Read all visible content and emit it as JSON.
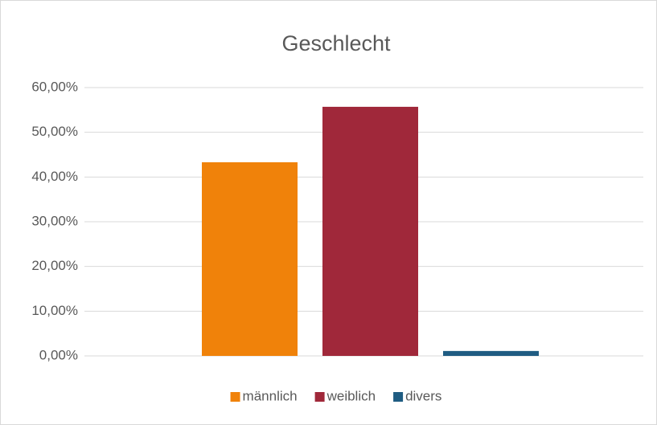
{
  "chart_data": {
    "type": "bar",
    "title": "Geschlecht",
    "categories": [
      null
    ],
    "series": [
      {
        "name": "männlich",
        "color": "#f0820a",
        "values": [
          43.3
        ]
      },
      {
        "name": "weiblich",
        "color": "#a0283a",
        "values": [
          55.7
        ]
      },
      {
        "name": "divers",
        "color": "#1f5c82",
        "values": [
          1.1
        ]
      }
    ],
    "ylim": [
      0,
      60
    ],
    "yticks": [
      {
        "value": 0,
        "label": "0,00%"
      },
      {
        "value": 10,
        "label": "10,00%"
      },
      {
        "value": 20,
        "label": "20,00%"
      },
      {
        "value": 30,
        "label": "30,00%"
      },
      {
        "value": 40,
        "label": "40,00%"
      },
      {
        "value": 50,
        "label": "50,00%"
      },
      {
        "value": 60,
        "label": "60,00%"
      }
    ],
    "grid": true,
    "legend": "bottom"
  }
}
